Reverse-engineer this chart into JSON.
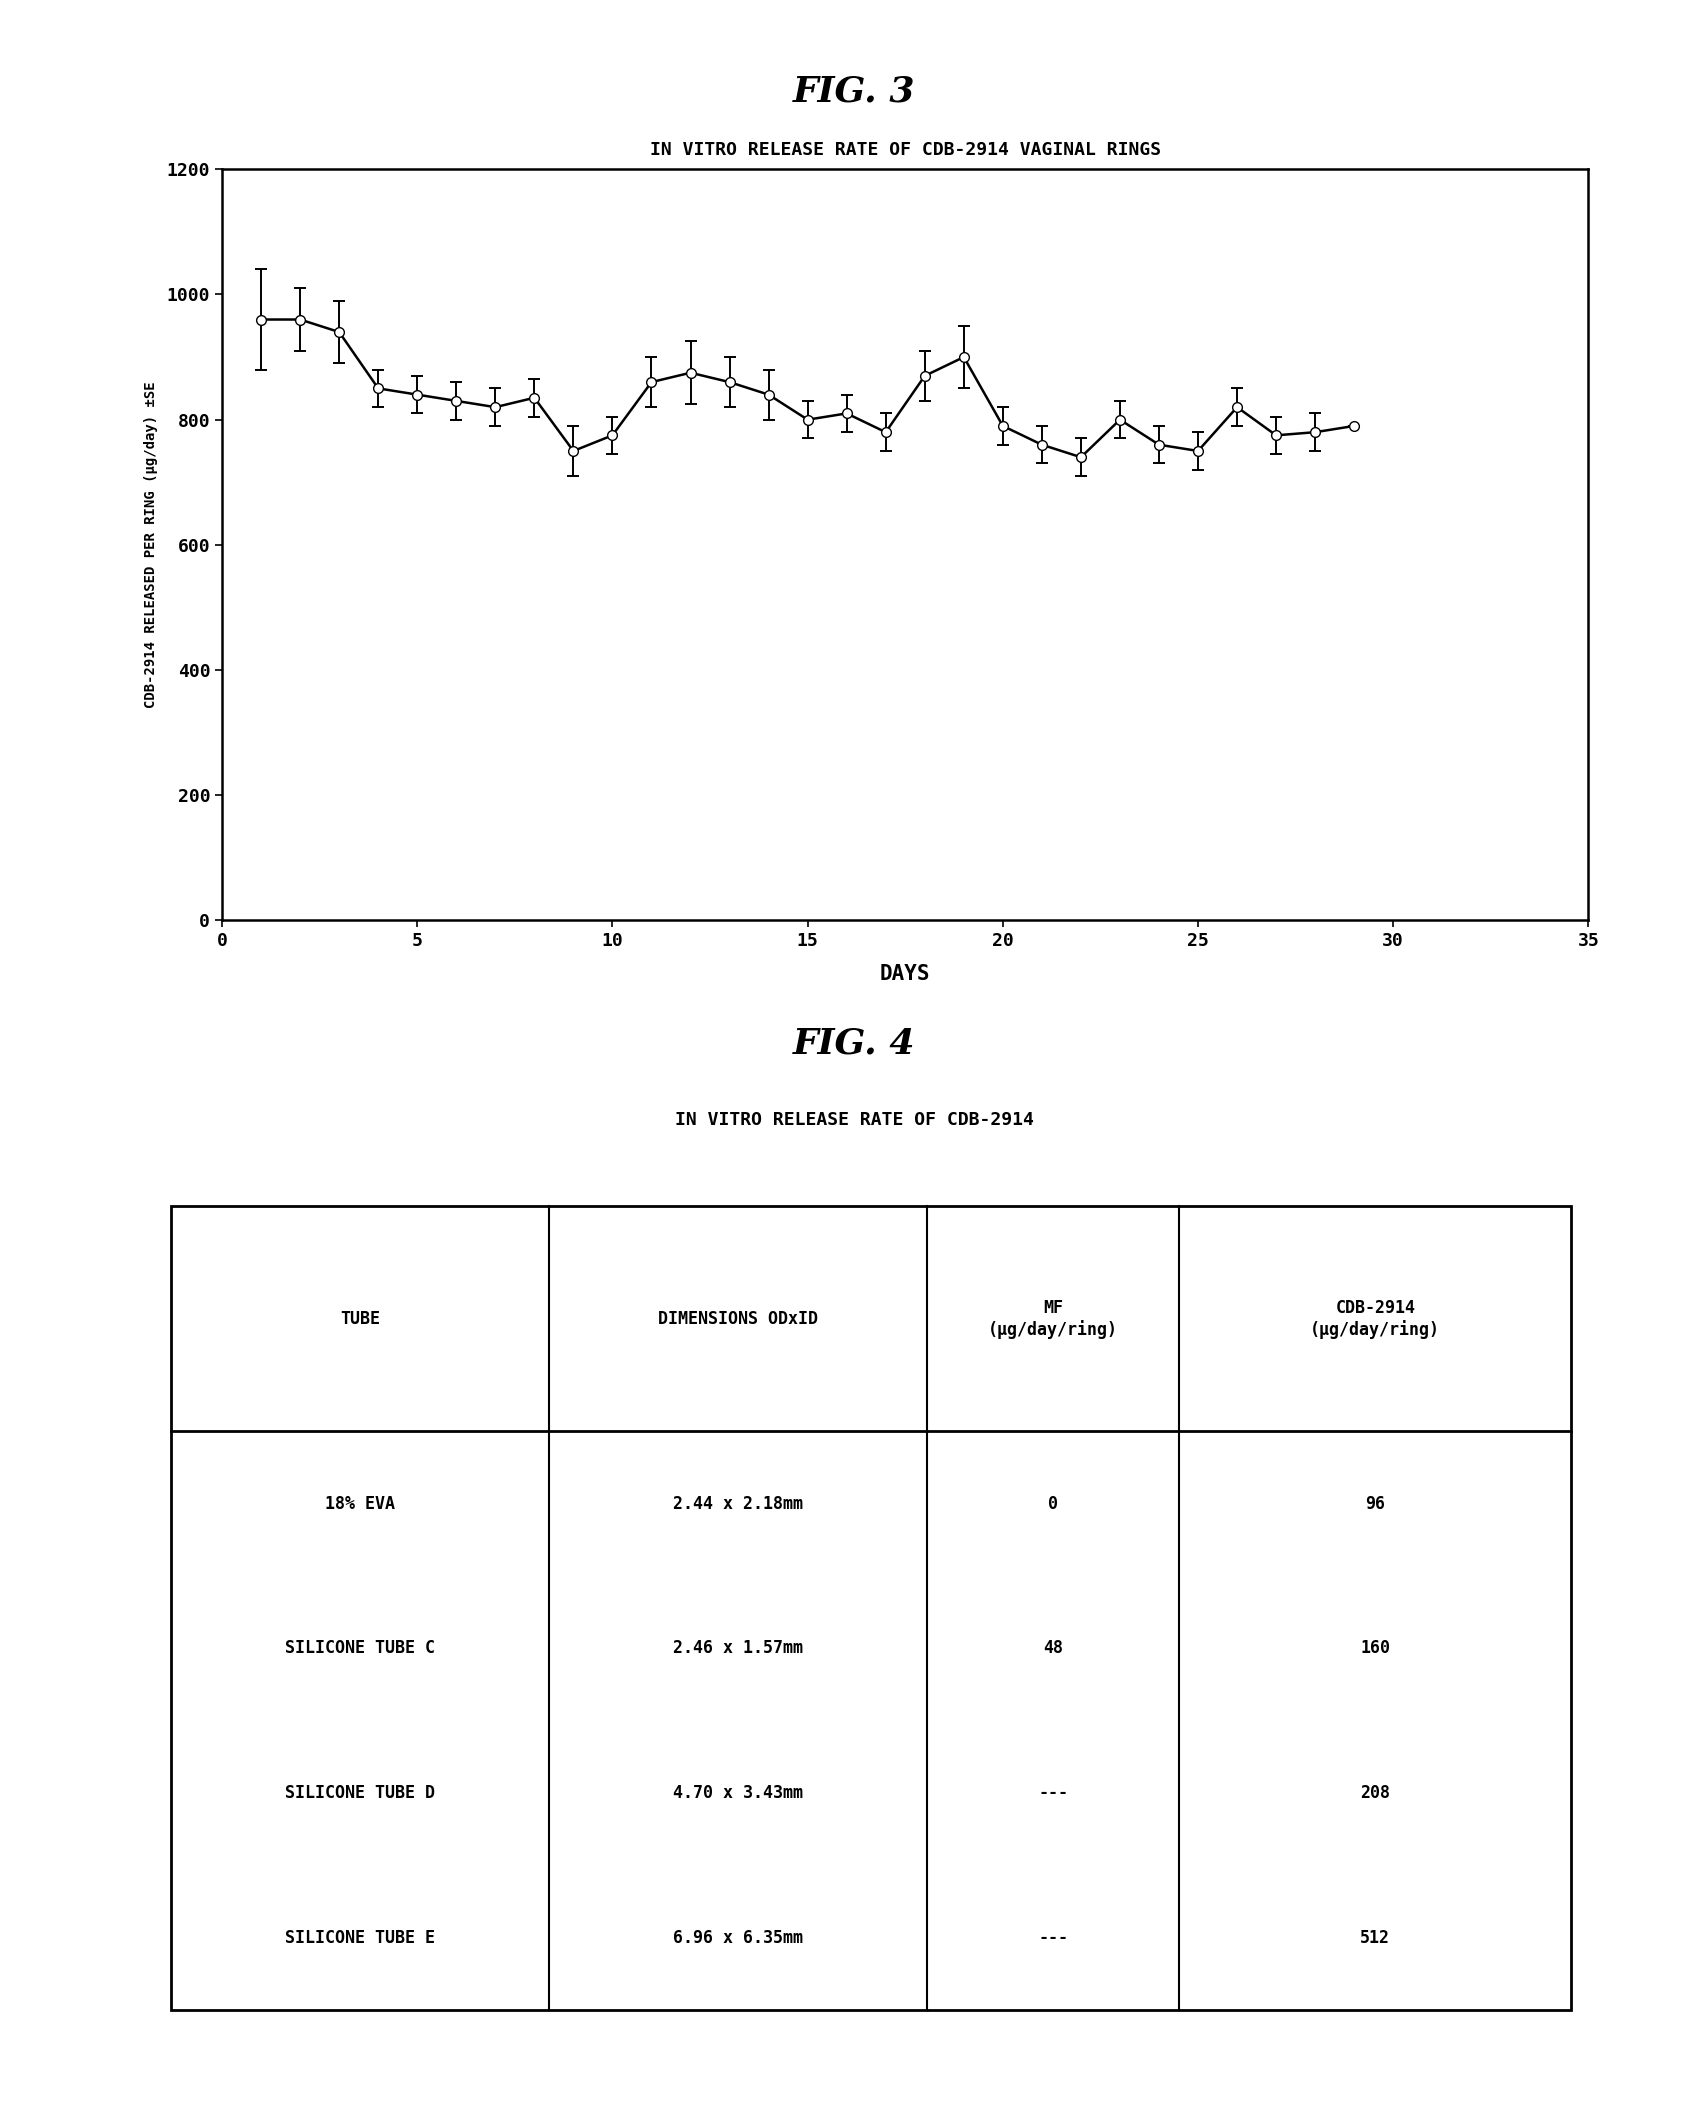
{
  "fig3_title": "FIG. 3",
  "chart_title": "IN VITRO RELEASE RATE OF CDB-2914 VAGINAL RINGS",
  "xlabel": "DAYS",
  "ylabel": "CDB-2914 RELEASED PER RING (μg/day) ±SE",
  "xlim": [
    0,
    35
  ],
  "ylim": [
    0,
    1200
  ],
  "yticks": [
    0,
    200,
    400,
    600,
    800,
    1000,
    1200
  ],
  "xticks": [
    0,
    5,
    10,
    15,
    20,
    25,
    30,
    35
  ],
  "x": [
    1,
    2,
    3,
    4,
    5,
    6,
    7,
    8,
    9,
    10,
    11,
    12,
    13,
    14,
    15,
    16,
    17,
    18,
    19,
    20,
    21,
    22,
    23,
    24,
    25,
    26,
    27,
    28,
    29
  ],
  "y": [
    960,
    960,
    940,
    850,
    840,
    830,
    820,
    835,
    750,
    775,
    860,
    875,
    860,
    840,
    800,
    810,
    780,
    870,
    900,
    790,
    760,
    740,
    800,
    760,
    750,
    820,
    775,
    780,
    790
  ],
  "yerr": [
    80,
    50,
    50,
    30,
    30,
    30,
    30,
    30,
    40,
    30,
    40,
    50,
    40,
    40,
    30,
    30,
    30,
    40,
    50,
    30,
    30,
    30,
    30,
    30,
    30,
    30,
    30,
    30,
    0
  ],
  "fig4_title": "FIG. 4",
  "table_title": "IN VITRO RELEASE RATE OF CDB-2914",
  "col_headers": [
    "TUBE",
    "DIMENSIONS ODxID",
    "MF\n(μg/day/ring)",
    "CDB-2914\n(μg/day/ring)"
  ],
  "table_data": [
    [
      "18% EVA",
      "2.44 x 2.18mm",
      "0",
      "96"
    ],
    [
      "SILICONE TUBE C",
      "2.46 x 1.57mm",
      "48",
      "160"
    ],
    [
      "SILICONE TUBE D",
      "4.70 x 3.43mm",
      "---",
      "208"
    ],
    [
      "SILICONE TUBE E",
      "6.96 x 6.35mm",
      "---",
      "512"
    ]
  ],
  "line_color": "#000000",
  "marker_color": "#ffffff",
  "background_color": "#ffffff"
}
